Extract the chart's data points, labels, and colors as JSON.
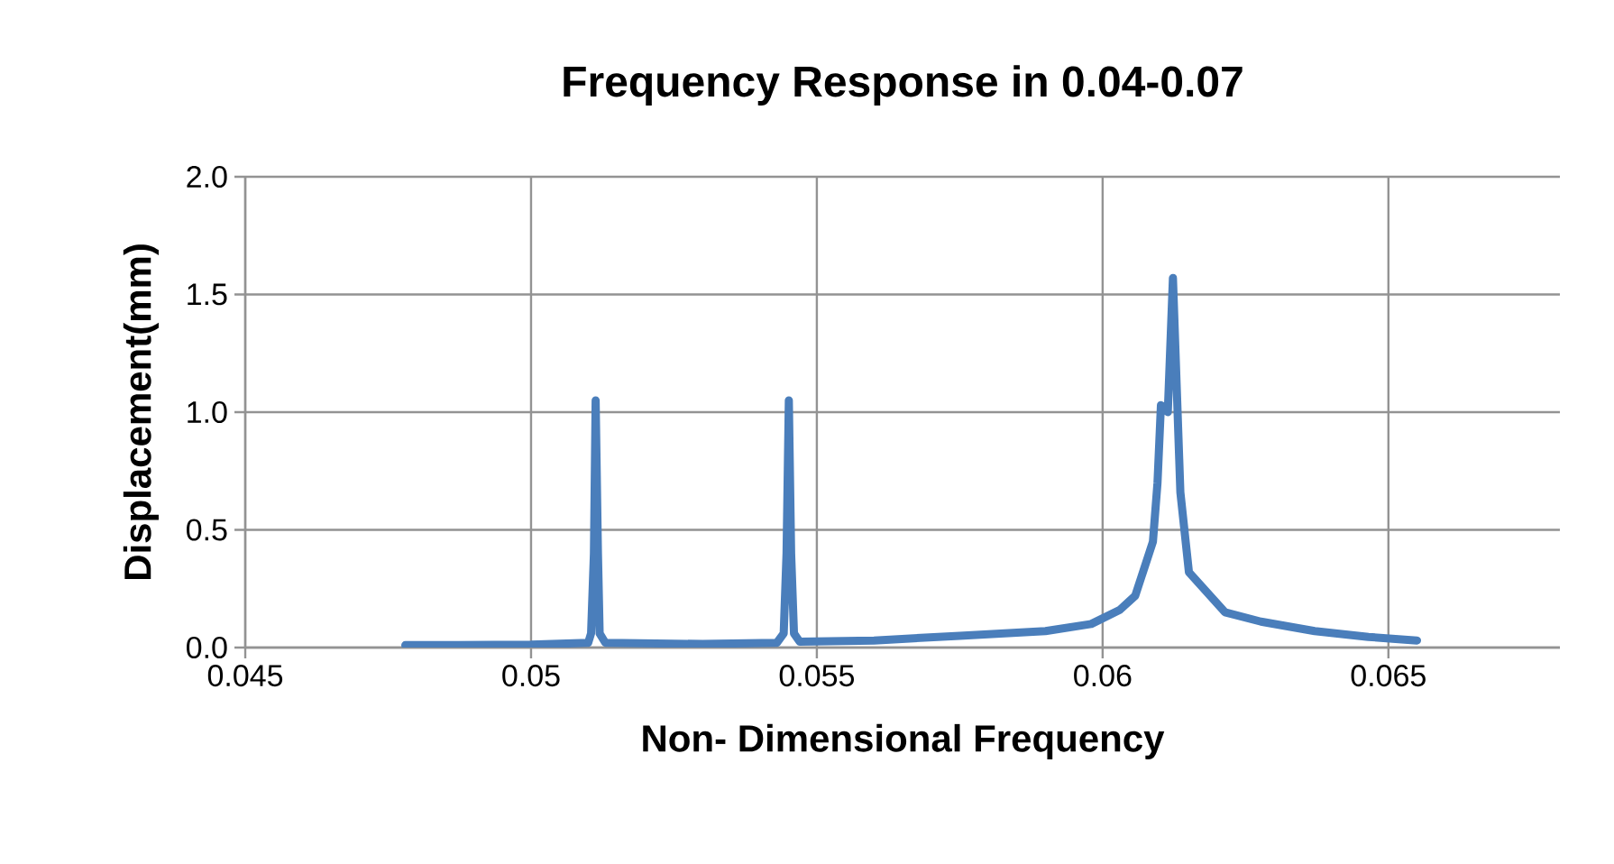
{
  "chart_data": {
    "type": "line",
    "title": "Frequency Response in 0.04-0.07",
    "xlabel": "Non- Dimensional Frequency",
    "ylabel": "Displacement(mm)",
    "xlim": [
      0.045,
      0.068
    ],
    "xticks": [
      0.045,
      0.05,
      0.055,
      0.06,
      0.065
    ],
    "ylim": [
      0,
      2
    ],
    "yticks": [
      {
        "value": 0,
        "label": "0.0"
      },
      {
        "value": 0.5,
        "label": "0.5"
      },
      {
        "value": 1,
        "label": "1.0"
      },
      {
        "value": 1.5,
        "label": "1.5"
      },
      {
        "value": 2,
        "label": "2.0"
      }
    ],
    "grid": true,
    "marker": "none",
    "line_style": "solid",
    "series": [
      {
        "color": "#4a7ebb",
        "x": [
          0.0478,
          0.05,
          0.051,
          0.05105,
          0.0511,
          0.05113,
          0.05117,
          0.0512,
          0.0513,
          0.053,
          0.0543,
          0.05442,
          0.05447,
          0.05451,
          0.05455,
          0.0546,
          0.0547,
          0.056,
          0.0575,
          0.059,
          0.0598,
          0.0603,
          0.06057,
          0.06088,
          0.06096,
          0.06102,
          0.06114,
          0.06123,
          0.06136,
          0.06151,
          0.06214,
          0.06277,
          0.06371,
          0.06465,
          0.0655
        ],
        "values": [
          0.01,
          0.012,
          0.02,
          0.06,
          0.4,
          1.05,
          0.4,
          0.06,
          0.02,
          0.015,
          0.02,
          0.06,
          0.4,
          1.05,
          0.4,
          0.06,
          0.025,
          0.03,
          0.05,
          0.07,
          0.1,
          0.16,
          0.22,
          0.45,
          0.7,
          1.03,
          1.0,
          1.57,
          0.66,
          0.32,
          0.15,
          0.11,
          0.07,
          0.045,
          0.03
        ]
      }
    ]
  }
}
